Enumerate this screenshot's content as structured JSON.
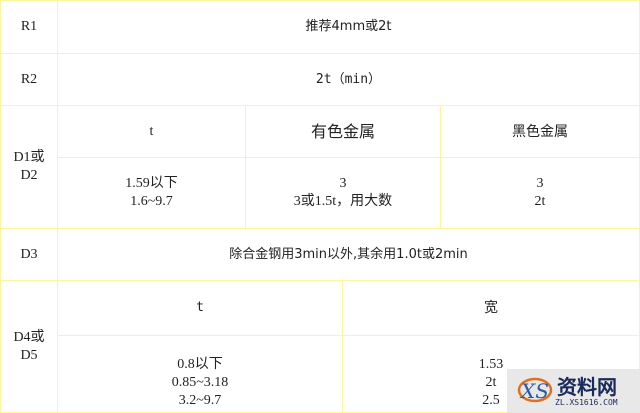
{
  "rows": {
    "r1": {
      "label": "R1",
      "value": "推荐4mm或2t"
    },
    "r2": {
      "label": "R2",
      "value": "2t（min）"
    },
    "d1": {
      "label_line1": "D1或",
      "label_line2": "D2",
      "headers": [
        "t",
        "有色金属",
        "黑色金属"
      ],
      "cells": [
        [
          "1.59以下",
          "1.6~9.7"
        ],
        [
          "3",
          "3或1.5t，用大数"
        ],
        [
          "3",
          "2t"
        ]
      ]
    },
    "d3": {
      "label": "D3",
      "value": "除合金钢用3min以外,其余用1.0t或2min"
    },
    "d4": {
      "label_line1": "D4或",
      "label_line2": "D5",
      "headers": [
        "t",
        "宽"
      ],
      "cells": [
        [
          "0.8以下",
          "0.85~3.18",
          "3.2~9.7"
        ],
        [
          "1.53",
          "2t",
          "2.5"
        ]
      ]
    }
  },
  "watermark": {
    "name": "资料网",
    "url": "ZL.XS1616.COM",
    "logo_text": "XS"
  },
  "colors": {
    "border": "#fdf59a"
  }
}
